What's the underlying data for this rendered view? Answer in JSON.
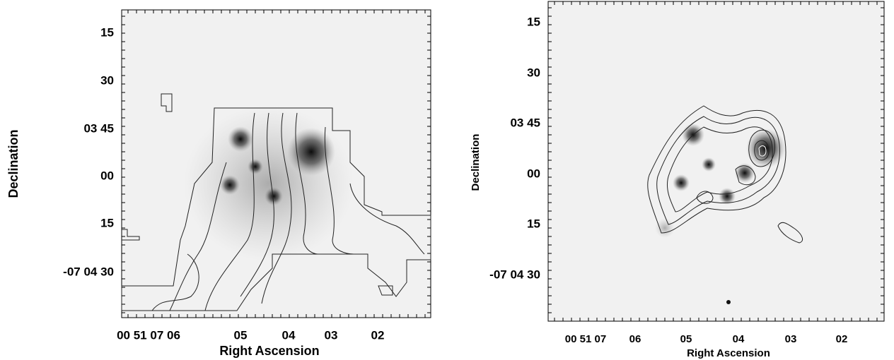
{
  "panels": [
    {
      "y_label": "Declination",
      "x_label": "Right Ascension",
      "y_ticks": [
        "15",
        "30",
        "03 45",
        "00",
        "15",
        "-07 04 30"
      ],
      "x_ticks": [
        "00 51 07 06",
        "05",
        "04",
        "03",
        "02"
      ]
    },
    {
      "y_label": "Declination",
      "x_label": "Right Ascension",
      "y_ticks": [
        "15",
        "30",
        "03 45",
        "00",
        "15",
        "-07 04 30"
      ],
      "x_ticks": [
        "00 51 07",
        "06",
        "05",
        "04",
        "03",
        "02"
      ]
    }
  ]
}
